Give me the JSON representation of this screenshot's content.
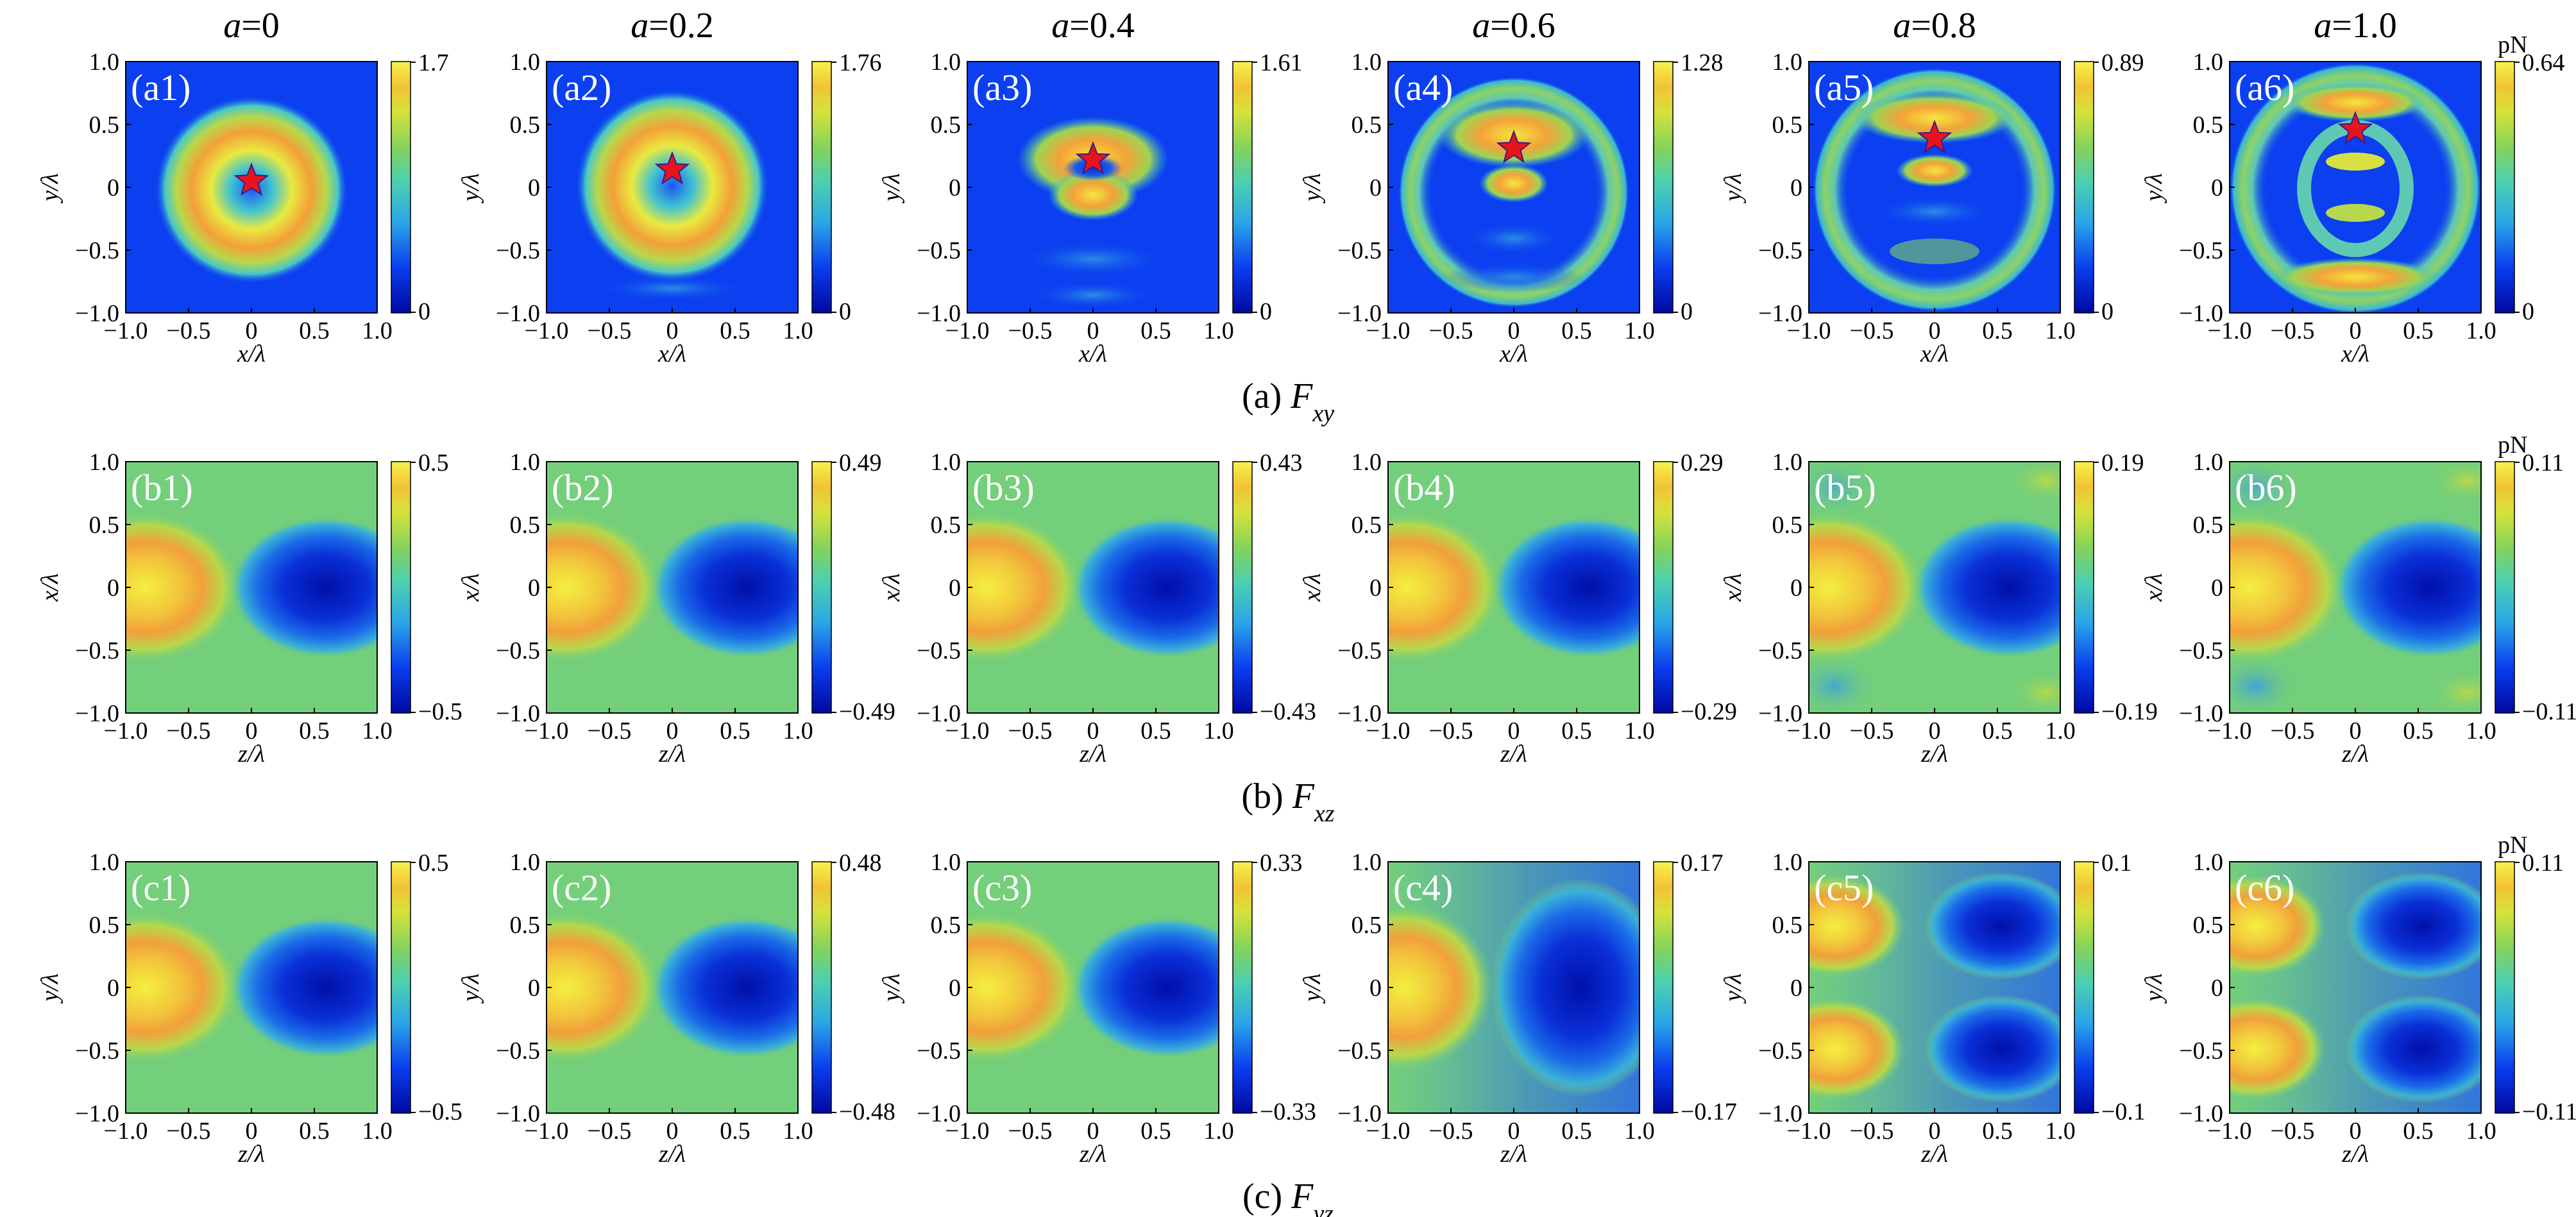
{
  "column_titles": [
    {
      "symbol": "a",
      "value": "=0"
    },
    {
      "symbol": "a",
      "value": "=0.2"
    },
    {
      "symbol": "a",
      "value": "=0.4"
    },
    {
      "symbol": "a",
      "value": "=0.6"
    },
    {
      "symbol": "a",
      "value": "=0.8"
    },
    {
      "symbol": "a",
      "value": "=1.0"
    }
  ],
  "unit": "pN",
  "tick_labels": [
    "−1.0",
    "−0.5",
    "0",
    "0.5",
    "1.0"
  ],
  "rows": [
    {
      "id": "a",
      "caption": {
        "prefix": "(a) ",
        "main": "F",
        "sub": "xy"
      },
      "xlabel": {
        "var": "x",
        "rest": "/λ"
      },
      "ylabel": {
        "var": "y",
        "rest": "/λ"
      },
      "panels": [
        {
          "label": "(a1)",
          "cmax": "1.7",
          "cmin": "0"
        },
        {
          "label": "(a2)",
          "cmax": "1.76",
          "cmin": "0"
        },
        {
          "label": "(a3)",
          "cmax": "1.61",
          "cmin": "0"
        },
        {
          "label": "(a4)",
          "cmax": "1.28",
          "cmin": "0"
        },
        {
          "label": "(a5)",
          "cmax": "0.89",
          "cmin": "0"
        },
        {
          "label": "(a6)",
          "cmax": "0.64",
          "cmin": "0"
        }
      ]
    },
    {
      "id": "b",
      "caption": {
        "prefix": "(b) ",
        "main": "F",
        "sub": "xz"
      },
      "xlabel": {
        "var": "z",
        "rest": "/λ"
      },
      "ylabel": {
        "var": "x",
        "rest": "/λ"
      },
      "panels": [
        {
          "label": "(b1)",
          "cmax": "0.5",
          "cmin": "−0.5"
        },
        {
          "label": "(b2)",
          "cmax": "0.49",
          "cmin": "−0.49"
        },
        {
          "label": "(b3)",
          "cmax": "0.43",
          "cmin": "−0.43"
        },
        {
          "label": "(b4)",
          "cmax": "0.29",
          "cmin": "−0.29"
        },
        {
          "label": "(b5)",
          "cmax": "0.19",
          "cmin": "−0.19"
        },
        {
          "label": "(b6)",
          "cmax": "0.11",
          "cmin": "−0.11"
        }
      ]
    },
    {
      "id": "c",
      "caption": {
        "prefix": "(c) ",
        "main": "F",
        "sub": "yz"
      },
      "xlabel": {
        "var": "z",
        "rest": "/λ"
      },
      "ylabel": {
        "var": "y",
        "rest": "/λ"
      },
      "panels": [
        {
          "label": "(c1)",
          "cmax": "0.5",
          "cmin": "−0.5"
        },
        {
          "label": "(c2)",
          "cmax": "0.48",
          "cmin": "−0.48"
        },
        {
          "label": "(c3)",
          "cmax": "0.33",
          "cmin": "−0.33"
        },
        {
          "label": "(c4)",
          "cmax": "0.17",
          "cmin": "−0.17"
        },
        {
          "label": "(c5)",
          "cmax": "0.1",
          "cmin": "−0.1"
        },
        {
          "label": "(c6)",
          "cmax": "0.11",
          "cmin": "−0.11"
        }
      ]
    }
  ],
  "chart_data": {
    "type": "heatmap",
    "description_layout": "3 rows x 6 columns of force-field heatmaps with colorbars",
    "x_range": [
      -1.0,
      1.0
    ],
    "y_range": [
      -1.0,
      1.0
    ],
    "x_ticks": [
      -1.0,
      -0.5,
      0,
      0.5,
      1.0
    ],
    "y_ticks": [
      -1.0,
      -0.5,
      0,
      0.5,
      1.0
    ],
    "a_values": [
      0,
      0.2,
      0.4,
      0.6,
      0.8,
      1.0
    ],
    "star_markers_row_a": [
      {
        "x": 0,
        "y": 0.05
      },
      {
        "x": 0,
        "y": 0.14
      },
      {
        "x": 0,
        "y": 0.22
      },
      {
        "x": 0,
        "y": 0.31
      },
      {
        "x": 0,
        "y": 0.39
      },
      {
        "x": 0,
        "y": 0.46
      }
    ],
    "colormap": [
      "#0010a8",
      "#0a4de0",
      "#25b4cf",
      "#7bcf6e",
      "#c8de3a",
      "#e8ef3e",
      "#f0a830"
    ],
    "colors": {
      "star": "#e8141c",
      "star_edge": "#3a1a8a",
      "field_bg_a": "#0b3ff0",
      "field_bg_bc": "#74cf7a"
    }
  }
}
